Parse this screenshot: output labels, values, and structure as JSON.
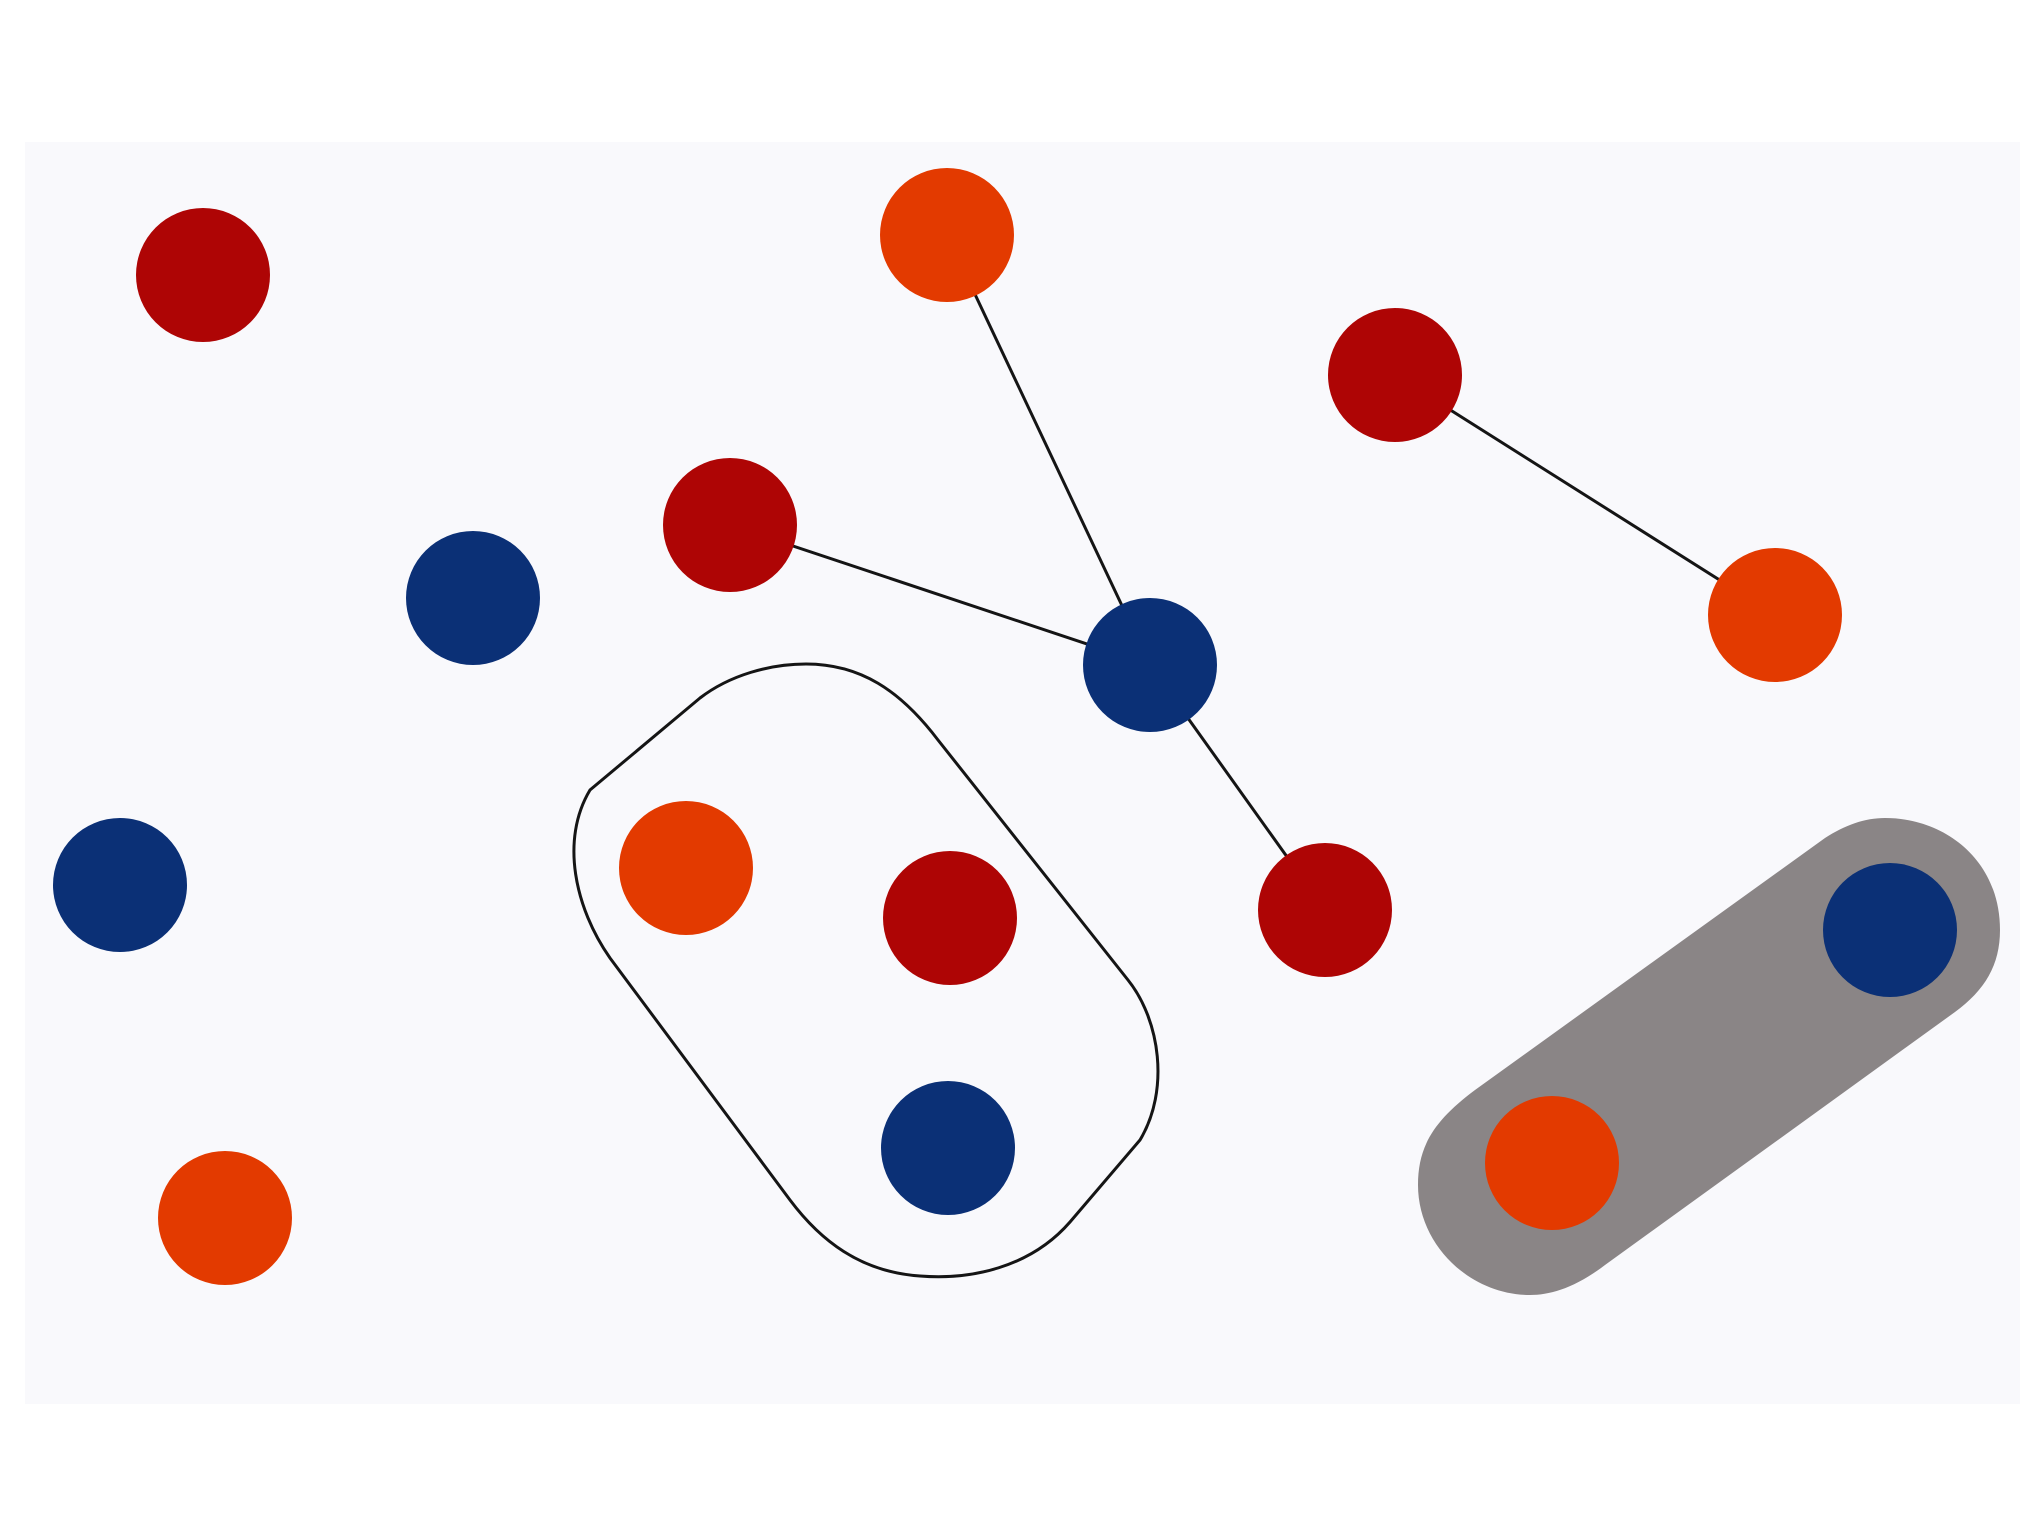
{
  "colors": {
    "page_background": "#ffffff",
    "panel_background": "#f9f9fc",
    "dark_red": "#ae0505",
    "orange": "#e33a00",
    "navy": "#0b3076",
    "edge": "#151515",
    "group_outline": "#151515",
    "group_fill": "#8a8586"
  },
  "nodes": [
    {
      "id": "n1",
      "color": "dark_red"
    },
    {
      "id": "n2",
      "color": "orange"
    },
    {
      "id": "n3",
      "color": "dark_red"
    },
    {
      "id": "n4",
      "color": "navy"
    },
    {
      "id": "n5",
      "color": "dark_red"
    },
    {
      "id": "n6",
      "color": "navy"
    },
    {
      "id": "n7",
      "color": "orange"
    },
    {
      "id": "n8",
      "color": "navy"
    },
    {
      "id": "n9",
      "color": "orange"
    },
    {
      "id": "n10",
      "color": "dark_red"
    },
    {
      "id": "n11",
      "color": "dark_red"
    },
    {
      "id": "n12",
      "color": "orange"
    },
    {
      "id": "n13",
      "color": "navy"
    },
    {
      "id": "n14",
      "color": "navy"
    },
    {
      "id": "n15",
      "color": "orange"
    }
  ],
  "edges": [
    {
      "from": "n2",
      "to": "n6"
    },
    {
      "from": "n5",
      "to": "n6"
    },
    {
      "from": "n6",
      "to": "n11"
    },
    {
      "from": "n3",
      "to": "n7"
    }
  ],
  "groups": [
    {
      "id": "outlined-group",
      "style": "outline",
      "members": [
        "n9",
        "n10",
        "n13"
      ]
    },
    {
      "id": "shaded-group",
      "style": "filled",
      "members": [
        "n14",
        "n15"
      ]
    }
  ]
}
